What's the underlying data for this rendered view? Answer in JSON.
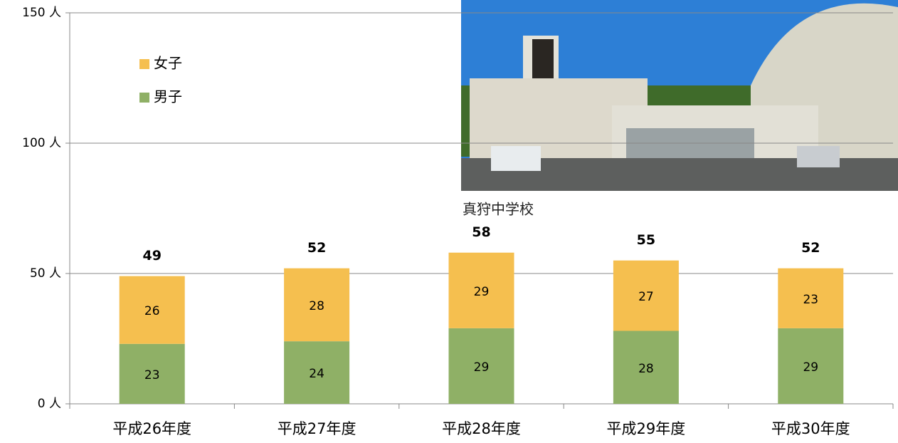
{
  "chart_data": {
    "type": "stacked_bar",
    "categories": [
      "平成26年度",
      "平成27年度",
      "平成28年度",
      "平成29年度",
      "平成30年度"
    ],
    "series": [
      {
        "name": "男子",
        "color": "#8fb066",
        "values": [
          23,
          24,
          29,
          28,
          29
        ]
      },
      {
        "name": "女子",
        "color": "#f5bf4f",
        "values": [
          26,
          28,
          29,
          27,
          23
        ]
      }
    ],
    "totals": [
      49,
      52,
      58,
      55,
      52
    ],
    "ylim": [
      0,
      150
    ],
    "yticks": [
      {
        "value": 0,
        "label": "0 人"
      },
      {
        "value": 50,
        "label": "50 人"
      },
      {
        "value": 100,
        "label": "100 人"
      },
      {
        "value": 150,
        "label": "150 人"
      }
    ],
    "grid": true,
    "legend": "upper-left"
  },
  "photo": {
    "caption": "真狩中学校"
  }
}
